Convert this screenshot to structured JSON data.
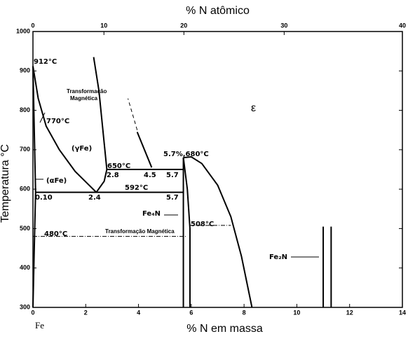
{
  "chart_data": {
    "type": "phase-diagram",
    "x2label": "% N atômico",
    "xlabel": "% N em massa",
    "ylabel": "Temperatura °C",
    "origin_label": "Fe",
    "xlim": [
      0,
      14
    ],
    "ylim": [
      300,
      1000
    ],
    "xticks": [
      0,
      2,
      4,
      6,
      8,
      10,
      12,
      14
    ],
    "yticks": [
      300,
      400,
      500,
      600,
      700,
      800,
      900,
      1000
    ],
    "x2ticks": [
      {
        "value": 0,
        "label": "0"
      },
      {
        "value": 2.69,
        "label": "10"
      },
      {
        "value": 5.72,
        "label": "20"
      },
      {
        "value": 9.52,
        "label": "30"
      },
      {
        "value": 14,
        "label": "40"
      }
    ],
    "boundaries": [
      {
        "style": "solid",
        "x": [
          0,
          0.2,
          0.5,
          1.0,
          1.6,
          2.4
        ],
        "y": [
          912,
          830,
          760,
          700,
          645,
          592
        ]
      },
      {
        "style": "solid",
        "x": [
          0,
          0.05,
          0.1
        ],
        "y": [
          912,
          750,
          592
        ]
      },
      {
        "style": "solid",
        "x": [
          0.1,
          0.05,
          0
        ],
        "y": [
          592,
          450,
          300
        ]
      },
      {
        "style": "solid",
        "x": [
          2.4,
          2.7,
          2.8,
          2.65,
          2.5,
          2.3
        ],
        "y": [
          592,
          620,
          650,
          750,
          850,
          935
        ]
      },
      {
        "style": "solid",
        "x": [
          2.8,
          5.7
        ],
        "y": [
          650,
          650
        ]
      },
      {
        "style": "solid",
        "x": [
          0.1,
          5.7
        ],
        "y": [
          592,
          592
        ]
      },
      {
        "style": "solid",
        "x": [
          4.5,
          3.95
        ],
        "y": [
          655,
          745
        ]
      },
      {
        "style": "dashed",
        "x": [
          3.95,
          3.6
        ],
        "y": [
          750,
          830
        ]
      },
      {
        "style": "solid",
        "x": [
          5.7,
          5.7
        ],
        "y": [
          680,
          300
        ]
      },
      {
        "style": "solid",
        "x": [
          5.7,
          5.85,
          5.95,
          5.95
        ],
        "y": [
          680,
          600,
          500,
          300
        ]
      },
      {
        "style": "solid",
        "x": [
          5.7,
          6.0,
          6.4,
          7.0,
          7.5,
          7.9,
          8.3
        ],
        "y": [
          680,
          682,
          665,
          610,
          530,
          430,
          300
        ]
      },
      {
        "style": "dashdot",
        "x": [
          5.95,
          7.5
        ],
        "y": [
          508,
          508
        ]
      },
      {
        "style": "dashdot",
        "x": [
          0,
          5.8
        ],
        "y": [
          480,
          480
        ]
      },
      {
        "style": "solid",
        "x": [
          11.0,
          11.0
        ],
        "y": [
          300,
          505
        ]
      },
      {
        "style": "solid",
        "x": [
          11.3,
          11.3
        ],
        "y": [
          300,
          505
        ]
      }
    ],
    "annotations": [
      "912°C",
      "Transformação",
      "Magnética",
      "770°C",
      "(γFe)",
      "(αFe)",
      "650°C",
      "592°C",
      "2.8",
      "4.5",
      "5.7",
      "5.7%,680°C",
      "0.10",
      "2.4",
      "5.7",
      "Fe₄N",
      "508°C",
      "480°C",
      "Transformação  Magnética",
      "Fe₂N",
      "ε"
    ]
  }
}
